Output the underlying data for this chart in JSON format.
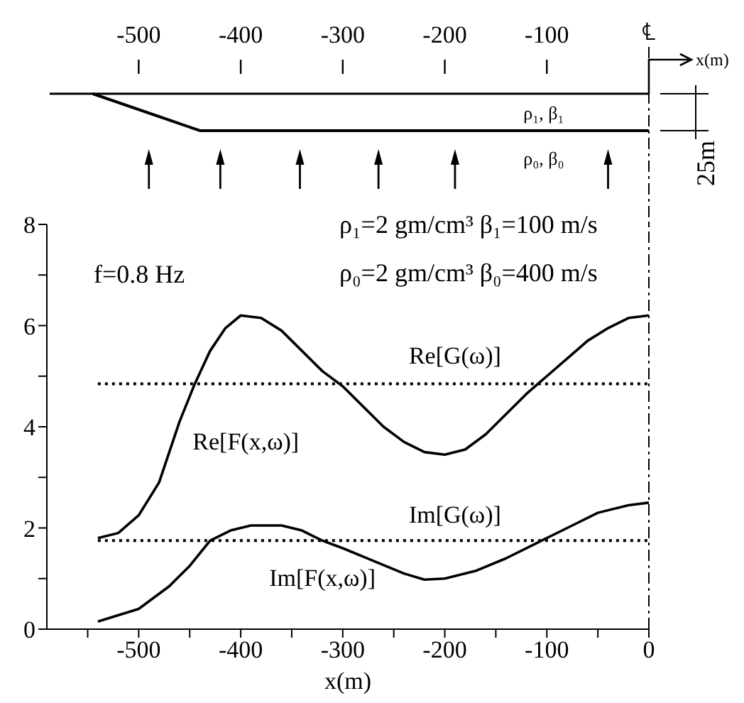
{
  "chart_data": {
    "type": "line",
    "xlabel": "x(m)",
    "x2label": "x(m)",
    "xlim": [
      -590,
      0
    ],
    "ylim": [
      0,
      8
    ],
    "xticks": [
      {
        "value": -550,
        "label": null
      },
      -500,
      {
        "value": -450,
        "label": null
      },
      -400,
      {
        "value": -350,
        "label": null
      },
      -300,
      {
        "value": -250,
        "label": null
      },
      -200,
      {
        "value": -150,
        "label": null
      },
      -100,
      {
        "value": -50,
        "label": null
      },
      0
    ],
    "yticks": [
      0,
      {
        "value": 1,
        "label": null
      },
      2,
      {
        "value": 3,
        "label": null
      },
      4,
      {
        "value": 5,
        "label": null
      },
      6,
      {
        "value": 7,
        "label": null
      },
      8
    ],
    "x2lim": [
      -590,
      0
    ],
    "x2ticks": [
      -500,
      -400,
      -300,
      -200,
      -100
    ],
    "series": [
      {
        "name": "Re[F(x,ω)]",
        "color": "#000000",
        "line_style": "solid",
        "x": [
          -540,
          -520,
          -500,
          -480,
          -470,
          -460,
          -445,
          -430,
          -415,
          -400,
          -380,
          -360,
          -340,
          -320,
          -300,
          -280,
          -260,
          -240,
          -220,
          -200,
          -180,
          -160,
          -140,
          -120,
          -100,
          -80,
          -60,
          -40,
          -20,
          0
        ],
        "values": [
          1.8,
          1.9,
          2.25,
          2.9,
          3.5,
          4.1,
          4.85,
          5.5,
          5.95,
          6.2,
          6.15,
          5.9,
          5.5,
          5.1,
          4.8,
          4.4,
          4.0,
          3.7,
          3.5,
          3.45,
          3.55,
          3.85,
          4.25,
          4.65,
          5.0,
          5.35,
          5.7,
          5.95,
          6.15,
          6.2
        ]
      },
      {
        "name": "Re[G(ω)]",
        "color": "#000000",
        "line_style": "dotted",
        "x": [
          -540,
          0
        ],
        "values": [
          4.85,
          4.85
        ]
      },
      {
        "name": "Im[G(ω)]",
        "color": "#000000",
        "line_style": "dotted",
        "x": [
          -540,
          0
        ],
        "values": [
          1.75,
          1.75
        ]
      },
      {
        "name": "Im[F(x,ω)]",
        "color": "#000000",
        "line_style": "solid",
        "x": [
          -540,
          -500,
          -470,
          -450,
          -430,
          -410,
          -390,
          -360,
          -340,
          -320,
          -300,
          -270,
          -240,
          -220,
          -200,
          -170,
          -140,
          -110,
          -80,
          -50,
          -20,
          0
        ],
        "values": [
          0.15,
          0.4,
          0.85,
          1.25,
          1.75,
          1.95,
          2.05,
          2.05,
          1.95,
          1.75,
          1.6,
          1.35,
          1.1,
          0.98,
          1.0,
          1.15,
          1.4,
          1.7,
          2.0,
          2.3,
          2.45,
          2.5
        ]
      }
    ],
    "ref_lines": [
      {
        "axis": "x",
        "value": 0,
        "label": "℄",
        "line_style": "dashed"
      }
    ],
    "annotations": [
      "f=0.8 Hz",
      "ρ₁=2 gm/cm³  β₁=100 m/s",
      "ρ₀=2 gm/cm³  β₀=400 m/s",
      "ρ₁, β₁",
      "ρ₀, β₀",
      "25m"
    ]
  }
}
